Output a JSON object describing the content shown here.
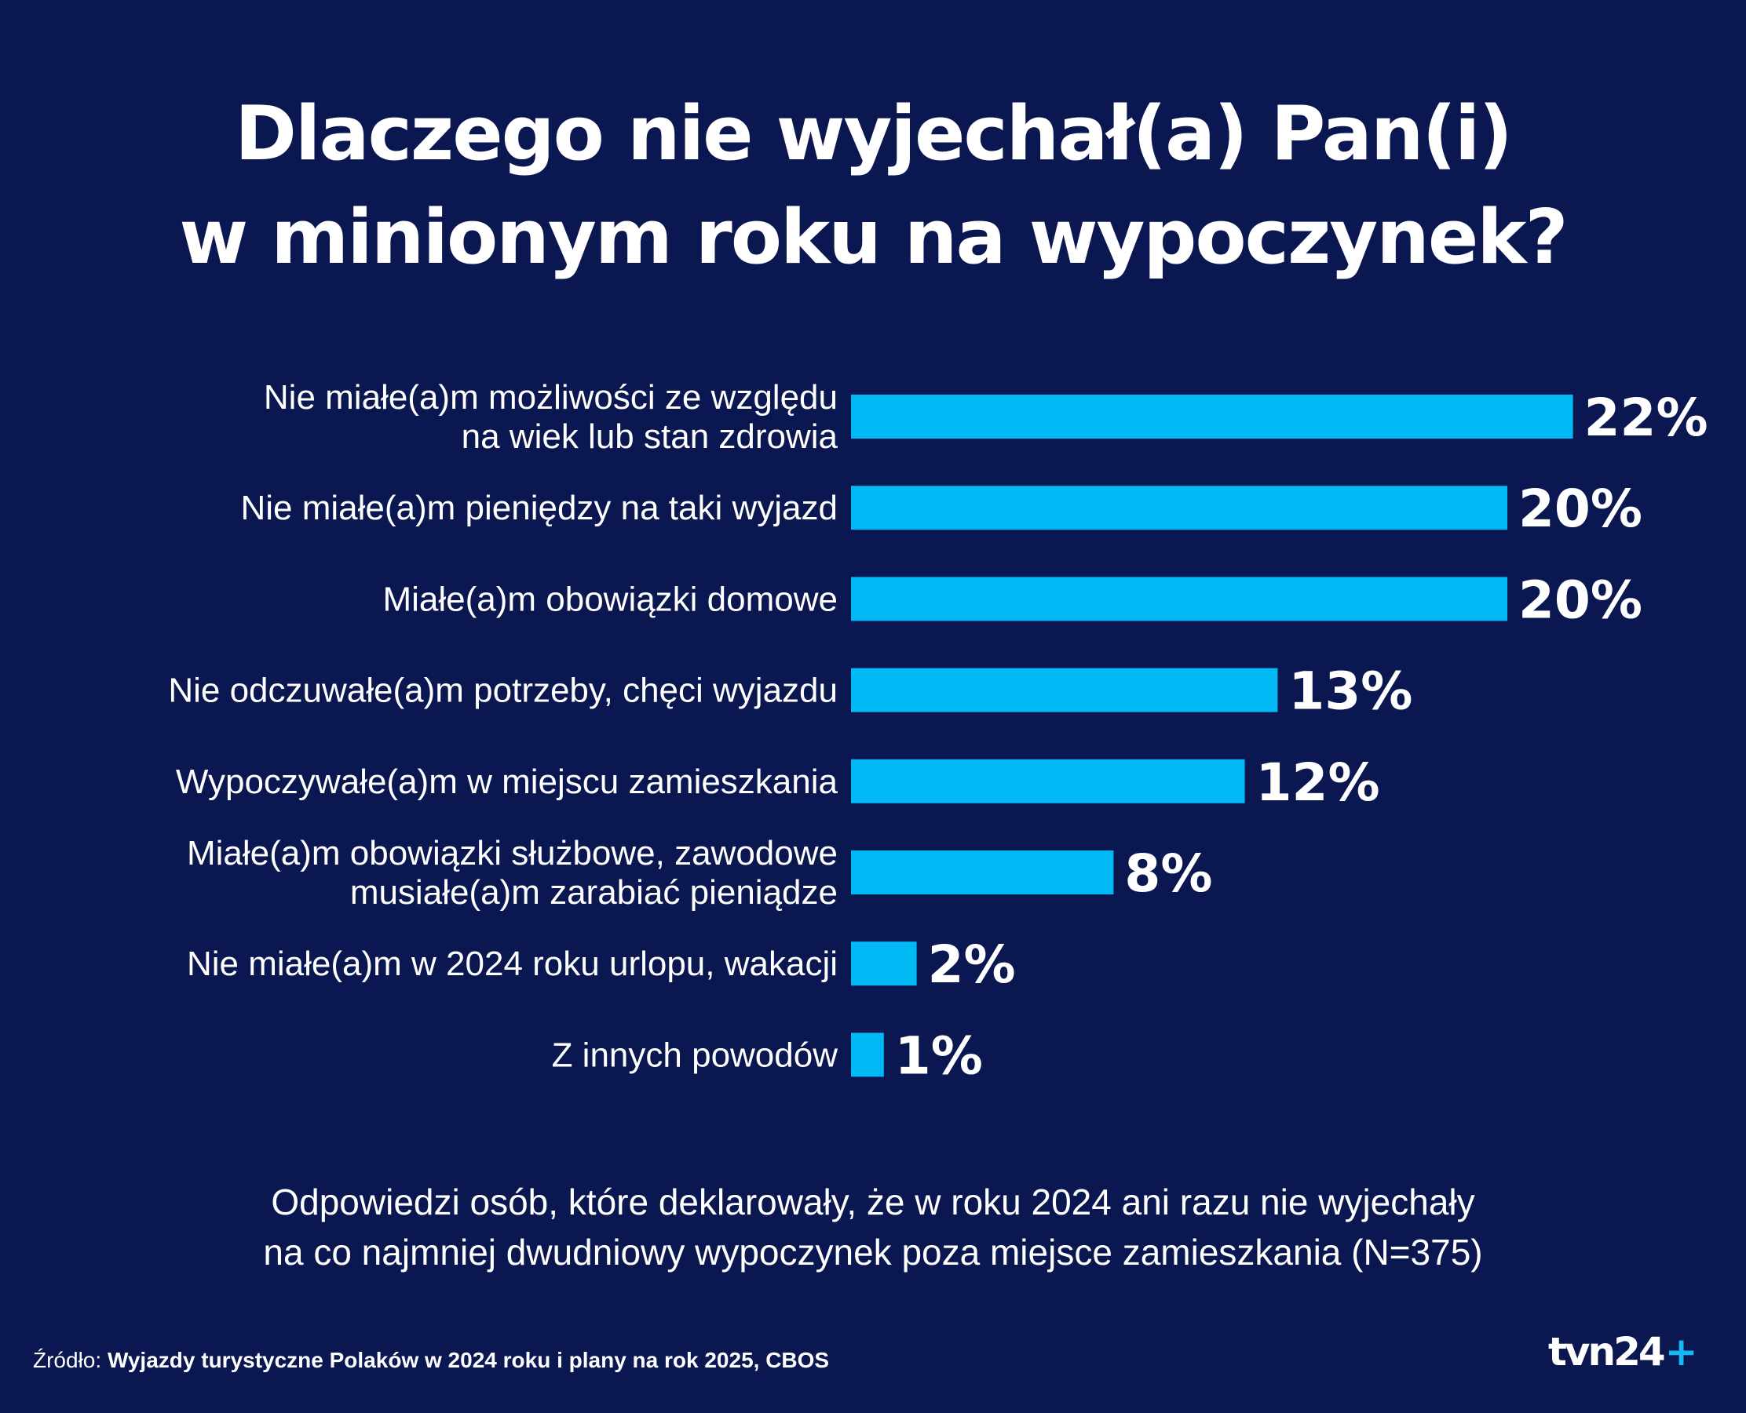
{
  "title": {
    "line1": "Dlaczego nie wyjechał(a) Pan(i)",
    "line2": "w minionym roku na wypoczynek?"
  },
  "chart_data": {
    "type": "bar",
    "orientation": "horizontal",
    "title": "Dlaczego nie wyjechał(a) Pan(i) w minionym roku na wypoczynek?",
    "categories": [
      [
        "Nie miałe(a)m możliwości ze względu",
        "na wiek lub stan zdrowia"
      ],
      [
        "Nie miałe(a)m pieniędzy na taki wyjazd"
      ],
      [
        "Miałe(a)m obowiązki domowe"
      ],
      [
        "Nie odczuwałe(a)m potrzeby, chęci wyjazdu"
      ],
      [
        "Wypoczywałe(a)m w miejscu zamieszkania"
      ],
      [
        "Miałe(a)m obowiązki służbowe, zawodowe",
        "musiałe(a)m zarabiać pieniądze"
      ],
      [
        "Nie miałe(a)m w 2024 roku urlopu, wakacji"
      ],
      [
        "Z innych powodów"
      ]
    ],
    "values": [
      22,
      20,
      20,
      13,
      12,
      8,
      2,
      1
    ],
    "value_labels": [
      "22%",
      "20%",
      "20%",
      "13%",
      "12%",
      "8%",
      "2%",
      "1%"
    ],
    "unit": "%",
    "bar_color": "#00b9f5",
    "grid": false,
    "legend": "none"
  },
  "note": {
    "line1": "Odpowiedzi osób, które deklarowały, że w roku 2024 ani razu nie wyjechały",
    "line2": "na co najmniej dwudniowy wypoczynek poza miejsce zamieszkania (N=375)"
  },
  "source": {
    "label": "Źródło: ",
    "text": "Wyjazdy turystyczne Polaków w 2024 roku i plany na rok 2025, CBOS"
  },
  "logo": {
    "text": "tvn24",
    "plus": "+"
  },
  "colors": {
    "background": "#0b1750",
    "bar": "#00b9f5",
    "text": "#ffffff",
    "logo_accent": "#16b8f3"
  }
}
